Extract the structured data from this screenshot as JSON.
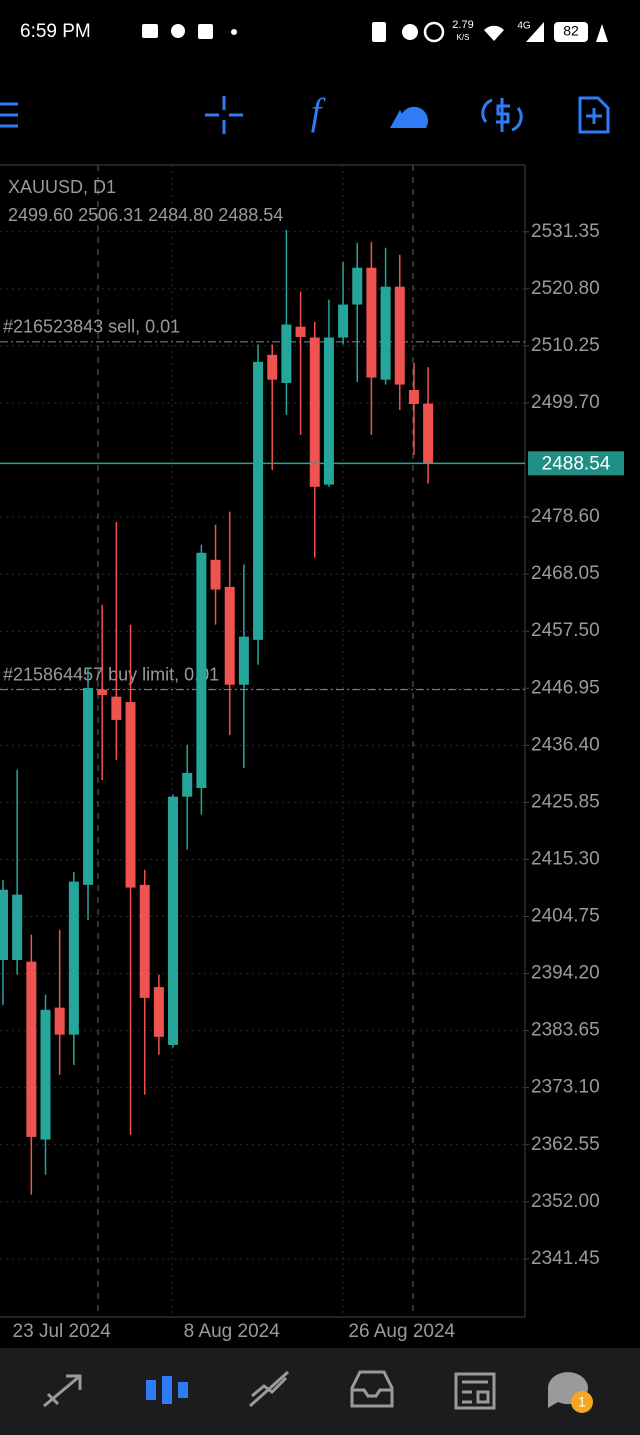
{
  "status_bar": {
    "time": "6:59 PM",
    "speed": "2.79",
    "speed_unit": "K/S",
    "network": "4G",
    "battery": "82"
  },
  "chart_data": {
    "type": "candlestick",
    "symbol": "XAUUSD, D1",
    "ohlc_header": "2499.60 2506.31 2484.80 2488.54",
    "categories": [
      null,
      null,
      null,
      null,
      "23 Jul 2024",
      null,
      null,
      null,
      null,
      null,
      null,
      null,
      null,
      null,
      null,
      null,
      "8 Aug 2024",
      null,
      null,
      null,
      null,
      null,
      null,
      null,
      null,
      null,
      null,
      null,
      "26 Aug 2024",
      null,
      null
    ],
    "open": [
      2396.7,
      2396.7,
      2396.4,
      2363.5,
      2387.9,
      2382.9,
      2410.6,
      2446.7,
      2445.4,
      2444.4,
      2410.6,
      2391.7,
      2381.0,
      2426.9,
      2428.5,
      2470.7,
      2465.7,
      2447.6,
      2455.9,
      2508.6,
      2503.4,
      2513.8,
      2511.8,
      2484.6,
      2511.8,
      2517.9,
      2524.7,
      2504.0,
      2521.2,
      2502.1,
      2499.6
    ],
    "high": [
      2411.5,
      2431.9,
      2401.4,
      2390.3,
      2402.3,
      2413.0,
      2450.7,
      2462.4,
      2477.7,
      2458.7,
      2413.4,
      2394.0,
      2427.3,
      2436.5,
      2473.5,
      2477.2,
      2479.6,
      2469.8,
      2510.5,
      2510.5,
      2531.7,
      2520.3,
      2514.7,
      2518.8,
      2525.8,
      2529.3,
      2529.5,
      2528.4,
      2527.1,
      2507.1,
      2506.31
    ],
    "low": [
      2388.4,
      2394.0,
      2353.3,
      2357.0,
      2375.5,
      2377.3,
      2404.1,
      2430.0,
      2433.7,
      2364.4,
      2371.8,
      2379.2,
      2380.5,
      2417.1,
      2423.6,
      2458.7,
      2438.3,
      2432.2,
      2451.3,
      2487.3,
      2497.5,
      2493.8,
      2471.1,
      2484.2,
      2510.5,
      2503.6,
      2493.8,
      2503.1,
      2498.4,
      2490.1,
      2484.8
    ],
    "close": [
      2409.7,
      2408.8,
      2364.0,
      2387.5,
      2382.9,
      2411.2,
      2447.0,
      2445.7,
      2441.1,
      2410.1,
      2389.7,
      2382.5,
      2426.9,
      2431.3,
      2472.0,
      2465.2,
      2447.6,
      2456.5,
      2507.3,
      2504.0,
      2514.2,
      2511.9,
      2484.2,
      2511.8,
      2517.9,
      2524.7,
      2504.4,
      2521.2,
      2503.1,
      2499.5,
      2488.54
    ],
    "up_color": "#26a69a",
    "down_color": "#ef5350",
    "ylim": [
      2330.7,
      2543.7
    ],
    "yticks": [
      2531.35,
      {
        "value": 2520.8,
        "label": "2520.80"
      },
      2510.25,
      {
        "value": 2499.7,
        "label": "2499.70"
      },
      {
        "value": 2478.6,
        "label": "2478.60"
      },
      2468.05,
      {
        "value": 2457.5,
        "label": "2457.50"
      },
      2446.95,
      {
        "value": 2436.4,
        "label": "2436.40"
      },
      2425.85,
      {
        "value": 2415.3,
        "label": "2415.30"
      },
      2404.75,
      {
        "value": 2394.2,
        "label": "2394.20"
      },
      2383.65,
      {
        "value": 2373.1,
        "label": "2373.10"
      },
      2362.55,
      {
        "value": 2352,
        "label": "2352.00"
      },
      2341.45
    ],
    "grid": true,
    "orders": [
      {
        "label": "#216523843 sell, 0.01",
        "price": 2511.0
      },
      {
        "label": "#215864457 buy limit, 0.01",
        "price": 2446.7
      }
    ],
    "price_label": "2488.54"
  },
  "bottom_bar": {
    "badge": "1"
  }
}
